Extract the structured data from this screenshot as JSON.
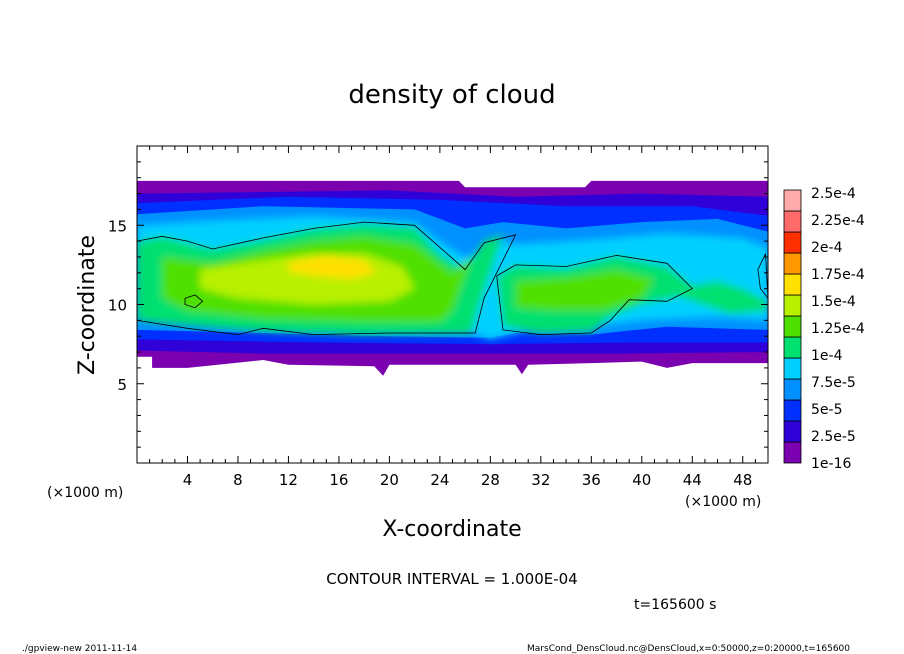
{
  "chart_data": {
    "type": "heatmap",
    "title": "density of cloud",
    "xlabel": "X-coordinate",
    "ylabel": "Z-coordinate",
    "x_unit": "(×1000 m)",
    "y_unit": "(×1000 m)",
    "xlim": [
      0,
      50
    ],
    "ylim": [
      0,
      20
    ],
    "x_ticks": [
      4,
      8,
      12,
      16,
      20,
      24,
      28,
      32,
      36,
      40,
      44,
      48
    ],
    "y_ticks": [
      5,
      10,
      15
    ],
    "contour_interval_text": "CONTOUR INTERVAL = 1.000E-04",
    "time_text": "t=165600 s",
    "colorbar": {
      "labels": [
        "1e-16",
        "2.5e-5",
        "5e-5",
        "7.5e-5",
        "1e-4",
        "1.25e-4",
        "1.5e-4",
        "1.75e-4",
        "2e-4",
        "2.25e-4",
        "2.5e-4"
      ],
      "colors": [
        "#7a00b0",
        "#3000d8",
        "#0030ff",
        "#0090ff",
        "#00d0ff",
        "#00e070",
        "#50e000",
        "#b8f000",
        "#ffe000",
        "#ff9800",
        "#ff3000",
        "#ff6a6a",
        "#ffaaaa"
      ]
    },
    "cloud_band": {
      "top_km": 17.8,
      "bottom_km": 6.0
    }
  },
  "footer": {
    "left": "./gpview-new   2011-11-14",
    "right": "MarsCond_DensCloud.nc@DensCloud,x=0:50000,z=0:20000,t=165600"
  }
}
